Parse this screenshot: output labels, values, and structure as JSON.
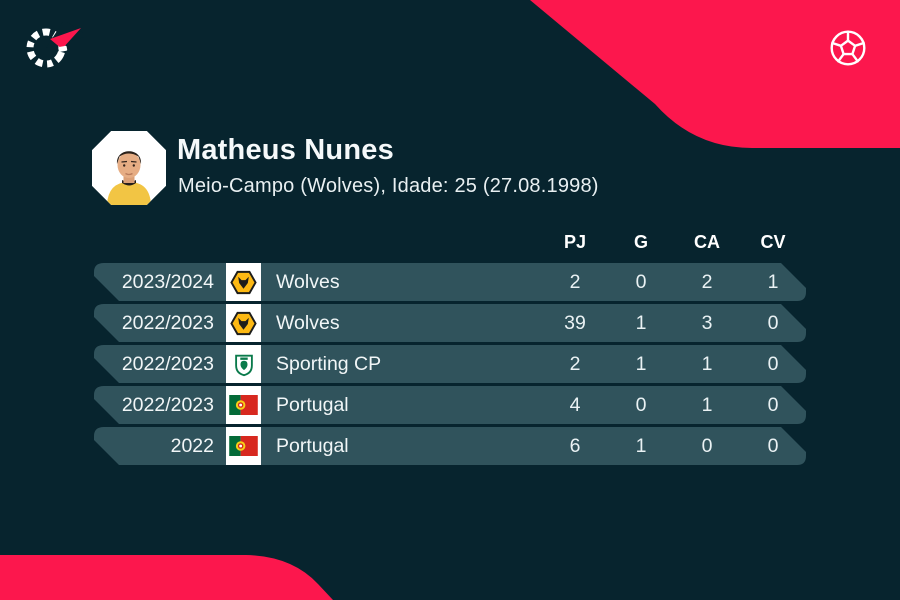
{
  "page": {
    "type": "player-season-stats-card"
  },
  "header": {
    "player_name": "Matheus Nunes",
    "player_details": "Meio-Campo (Wolves), Idade: 25 (27.08.1998)"
  },
  "icons": {
    "top_left": "flashscore-logo",
    "top_right": "football-icon",
    "avatar": "player-photo"
  },
  "table": {
    "headers": [
      "PJ",
      "G",
      "CA",
      "CV"
    ],
    "rows": [
      {
        "season": "2023/2024",
        "team": "Wolves",
        "badge": "wolves",
        "stats": [
          "2",
          "0",
          "2",
          "1"
        ]
      },
      {
        "season": "2022/2023",
        "team": "Wolves",
        "badge": "wolves",
        "stats": [
          "39",
          "1",
          "3",
          "0"
        ]
      },
      {
        "season": "2022/2023",
        "team": "Sporting CP",
        "badge": "sporting",
        "stats": [
          "2",
          "1",
          "1",
          "0"
        ]
      },
      {
        "season": "2022/2023",
        "team": "Portugal",
        "badge": "portugal",
        "stats": [
          "4",
          "0",
          "1",
          "0"
        ]
      },
      {
        "season": "2022",
        "team": "Portugal",
        "badge": "portugal",
        "stats": [
          "6",
          "1",
          "0",
          "0"
        ]
      }
    ]
  },
  "colors": {
    "background": "#07242e",
    "row": "#30535c",
    "accent_pink": "#fc174d",
    "wolves_gold": "#fdb913",
    "sporting_green": "#0a7a4b",
    "portugal_green": "#046a38",
    "portugal_red": "#d7281f",
    "text": "#eef4f6"
  }
}
